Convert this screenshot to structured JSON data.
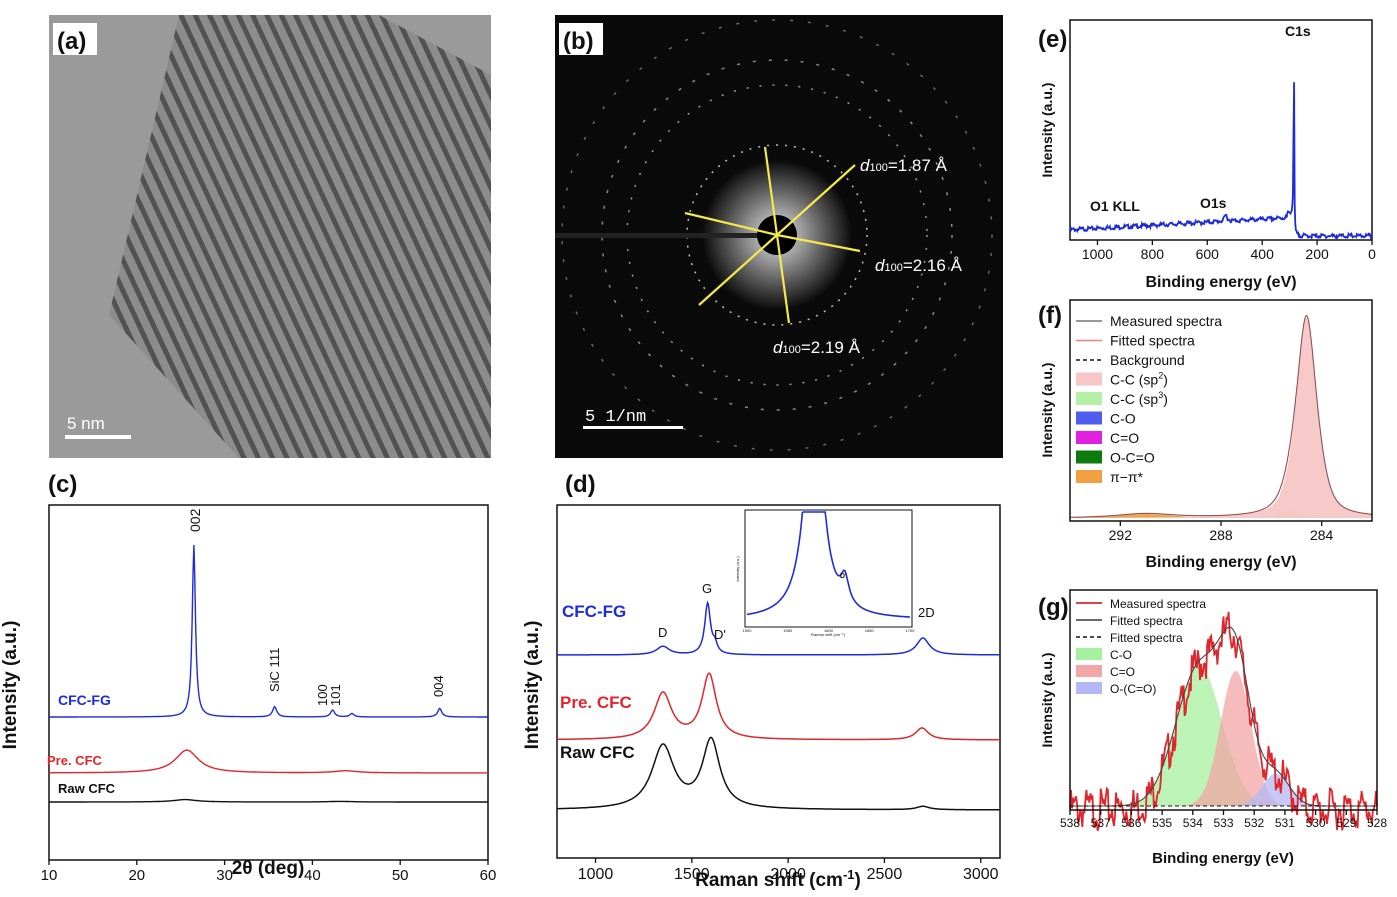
{
  "panels": {
    "a": {
      "label": "(a)",
      "scalebar": "5 nm"
    },
    "b": {
      "label": "(b)",
      "scalebar": "5 1/nm",
      "annotations": [
        {
          "d": "d",
          "sub": "100",
          "value": "=1.87 Å"
        },
        {
          "d": "d",
          "sub": "100",
          "value": "=2.16 Å"
        },
        {
          "d": "d",
          "sub": "100",
          "value": "=2.19 Å"
        }
      ]
    },
    "c": {
      "label": "(c)"
    },
    "d": {
      "label": "(d)"
    },
    "e": {
      "label": "(e)"
    },
    "f": {
      "label": "(f)"
    },
    "g": {
      "label": "(g)"
    }
  },
  "colors": {
    "blue": "#1f2bd6",
    "red": "#e0262c",
    "black": "#111111",
    "yellow": "#f5e84a"
  },
  "chart_data": [
    {
      "id": "c",
      "type": "line",
      "xlabel": "2θ (deg)",
      "ylabel": "Intensity (a.u.)",
      "xlim": [
        10,
        60
      ],
      "xticks": [
        "10",
        "20",
        "30",
        "40",
        "50",
        "60"
      ],
      "series": [
        {
          "name": "CFC-FG",
          "color": "#1f2bd6",
          "peaks": [
            [
              26.5,
              1.0
            ],
            [
              35.7,
              0.06
            ],
            [
              42.3,
              0.04
            ],
            [
              44.5,
              0.02
            ],
            [
              54.5,
              0.05
            ]
          ]
        },
        {
          "name": "Pre. CFC",
          "color": "#e0262c",
          "peaks": [
            [
              25.7,
              0.22
            ],
            [
              43.8,
              0.02
            ]
          ]
        },
        {
          "name": "Raw CFC",
          "color": "#111111",
          "peaks": [
            [
              25.5,
              0.06
            ],
            [
              43.2,
              0.015
            ]
          ]
        }
      ],
      "annotations": [
        "002",
        "SiC 111",
        "100",
        "101",
        "004"
      ]
    },
    {
      "id": "d",
      "type": "line",
      "xlabel": "Raman shift (cm",
      "xlabel_sup": "-1",
      "xlabel_end": ")",
      "ylabel": "Intensity (a.u.)",
      "xlim": [
        800,
        3100
      ],
      "xticks": [
        "1000",
        "1500",
        "2000",
        "2500",
        "3000"
      ],
      "series": [
        {
          "name": "CFC-FG",
          "color": "#1f2bd6",
          "peaks": [
            [
              1350,
              0.05
            ],
            [
              1582,
              0.3
            ],
            [
              1620,
              0.05
            ],
            [
              2700,
              0.1
            ]
          ]
        },
        {
          "name": "Pre. CFC",
          "color": "#e0262c",
          "peaks": [
            [
              1350,
              0.27
            ],
            [
              1590,
              0.38
            ],
            [
              2695,
              0.07
            ]
          ]
        },
        {
          "name": "Raw CFC",
          "color": "#111111",
          "peaks": [
            [
              1350,
              0.37
            ],
            [
              1600,
              0.4
            ],
            [
              2700,
              0.02
            ]
          ]
        }
      ],
      "annotations": [
        "D",
        "G",
        "D'",
        "2D"
      ],
      "inset": {
        "xlabel": "Raman shift (cm⁻¹)",
        "ylabel": "Intensity (a.u.)",
        "peak_label": "D'",
        "xticks": [
          "1500",
          "1550",
          "1600",
          "1650",
          "1700"
        ]
      }
    },
    {
      "id": "e",
      "type": "line",
      "xlabel": "Binding energy (eV)",
      "ylabel": "Intensity (a.u.)",
      "xlim": [
        1100,
        0
      ],
      "xticks": [
        "1000",
        "800",
        "600",
        "400",
        "200",
        "0"
      ],
      "series": [
        {
          "name": "survey",
          "color": "#1f2bd6"
        }
      ],
      "annotations": [
        "C1s",
        "O1 KLL",
        "O1s"
      ]
    },
    {
      "id": "f",
      "type": "area",
      "xlabel": "Binding energy (eV)",
      "ylabel": "Intensity (a.u.)",
      "xlim": [
        294,
        282
      ],
      "xticks": [
        "292",
        "288",
        "284"
      ],
      "legend": [
        {
          "name": "Measured spectra",
          "kind": "line",
          "color": "#777777"
        },
        {
          "name": "Fitted spectra",
          "kind": "line",
          "color": "#f08080"
        },
        {
          "name": "Background",
          "kind": "dash",
          "color": "#111111"
        },
        {
          "name": "C-C (sp",
          "sup": "2",
          "end": ")",
          "kind": "box",
          "color": "#f7c6c6"
        },
        {
          "name": "C-C (sp",
          "sup": "3",
          "end": ")",
          "kind": "box",
          "color": "#b4f0a6"
        },
        {
          "name": "C-O",
          "kind": "box",
          "color": "#4f5df0"
        },
        {
          "name": "C=O",
          "kind": "box",
          "color": "#e021e0"
        },
        {
          "name": "O-C=O",
          "kind": "box",
          "color": "#0d7a0d"
        },
        {
          "name": "π−π*",
          "kind": "box",
          "color": "#f0a040"
        }
      ],
      "peaks": [
        {
          "center": 284.6,
          "height": 1.0,
          "color": "#f7c6c6"
        },
        {
          "center": 285.3,
          "height": 0.04,
          "color": "#b4f0a6"
        },
        {
          "center": 291.0,
          "height": 0.02,
          "color": "#f0a040"
        }
      ]
    },
    {
      "id": "g",
      "type": "area",
      "xlabel": "Binding energy (eV)",
      "ylabel": "Intensity (a.u.)",
      "xlim": [
        538,
        528
      ],
      "xticks": [
        "538",
        "537",
        "536",
        "535",
        "534",
        "533",
        "532",
        "531",
        "530",
        "529",
        "528"
      ],
      "legend": [
        {
          "name": "Measured spectra",
          "kind": "line",
          "color": "#e0262c"
        },
        {
          "name": "Fitted spectra",
          "kind": "line",
          "color": "#555555"
        },
        {
          "name": "Fitted spectra",
          "kind": "dash",
          "color": "#111111"
        },
        {
          "name": "C-O",
          "kind": "box",
          "color": "#a6f0a0"
        },
        {
          "name": "C=O",
          "kind": "box",
          "color": "#f3a6a6"
        },
        {
          "name": "O-(C=O)",
          "kind": "box",
          "color": "#b4b8f4"
        }
      ],
      "peaks": [
        {
          "center": 533.8,
          "height": 0.78,
          "color": "#a6f0a0"
        },
        {
          "center": 532.6,
          "height": 0.75,
          "color": "#f3a6a6"
        },
        {
          "center": 531.3,
          "height": 0.18,
          "color": "#b4b8f4"
        }
      ]
    }
  ]
}
